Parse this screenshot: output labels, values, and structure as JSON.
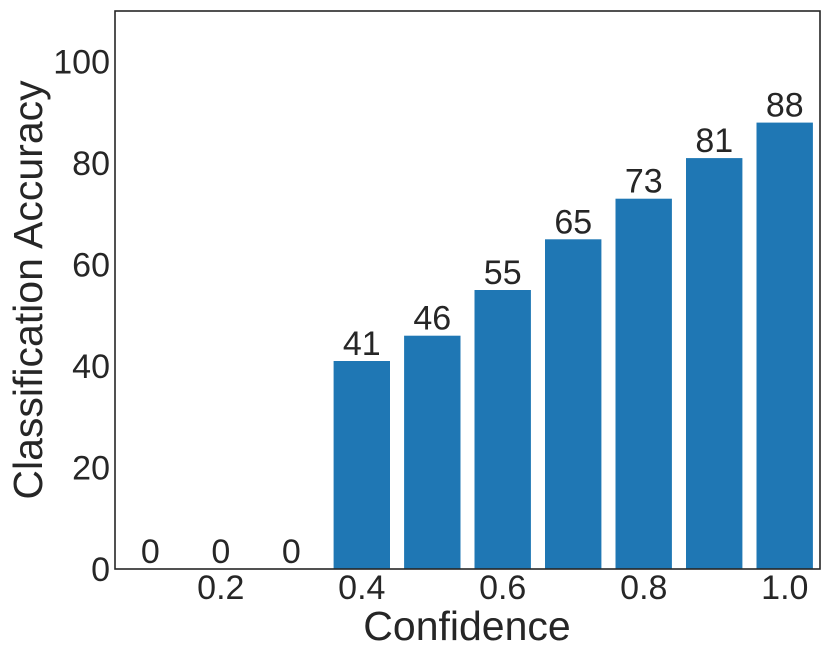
{
  "chart_data": {
    "type": "bar",
    "title": "",
    "xlabel": "Confidence",
    "ylabel": "Classification Accuracy",
    "x": [
      0.1,
      0.2,
      0.3,
      0.4,
      0.5,
      0.6,
      0.7,
      0.8,
      0.9,
      1.0
    ],
    "values": [
      0,
      0,
      0,
      41,
      46,
      55,
      65,
      73,
      81,
      88
    ],
    "data_labels": [
      "0",
      "0",
      "0",
      "41",
      "46",
      "55",
      "65",
      "73",
      "81",
      "88"
    ],
    "xticks": [
      0.2,
      0.4,
      0.6,
      0.8,
      1.0
    ],
    "xtick_labels": [
      "0.2",
      "0.4",
      "0.6",
      "0.8",
      "1.0"
    ],
    "yticks": [
      0,
      20,
      40,
      60,
      80,
      100
    ],
    "ytick_labels": [
      "0",
      "20",
      "40",
      "60",
      "80",
      "100"
    ],
    "xlim": [
      0.05,
      1.05
    ],
    "ylim": [
      0,
      110
    ],
    "grid": false,
    "legend": "none",
    "bar_color": "#1f77b4",
    "frame_color": "#262626",
    "text_color": "#262626"
  }
}
